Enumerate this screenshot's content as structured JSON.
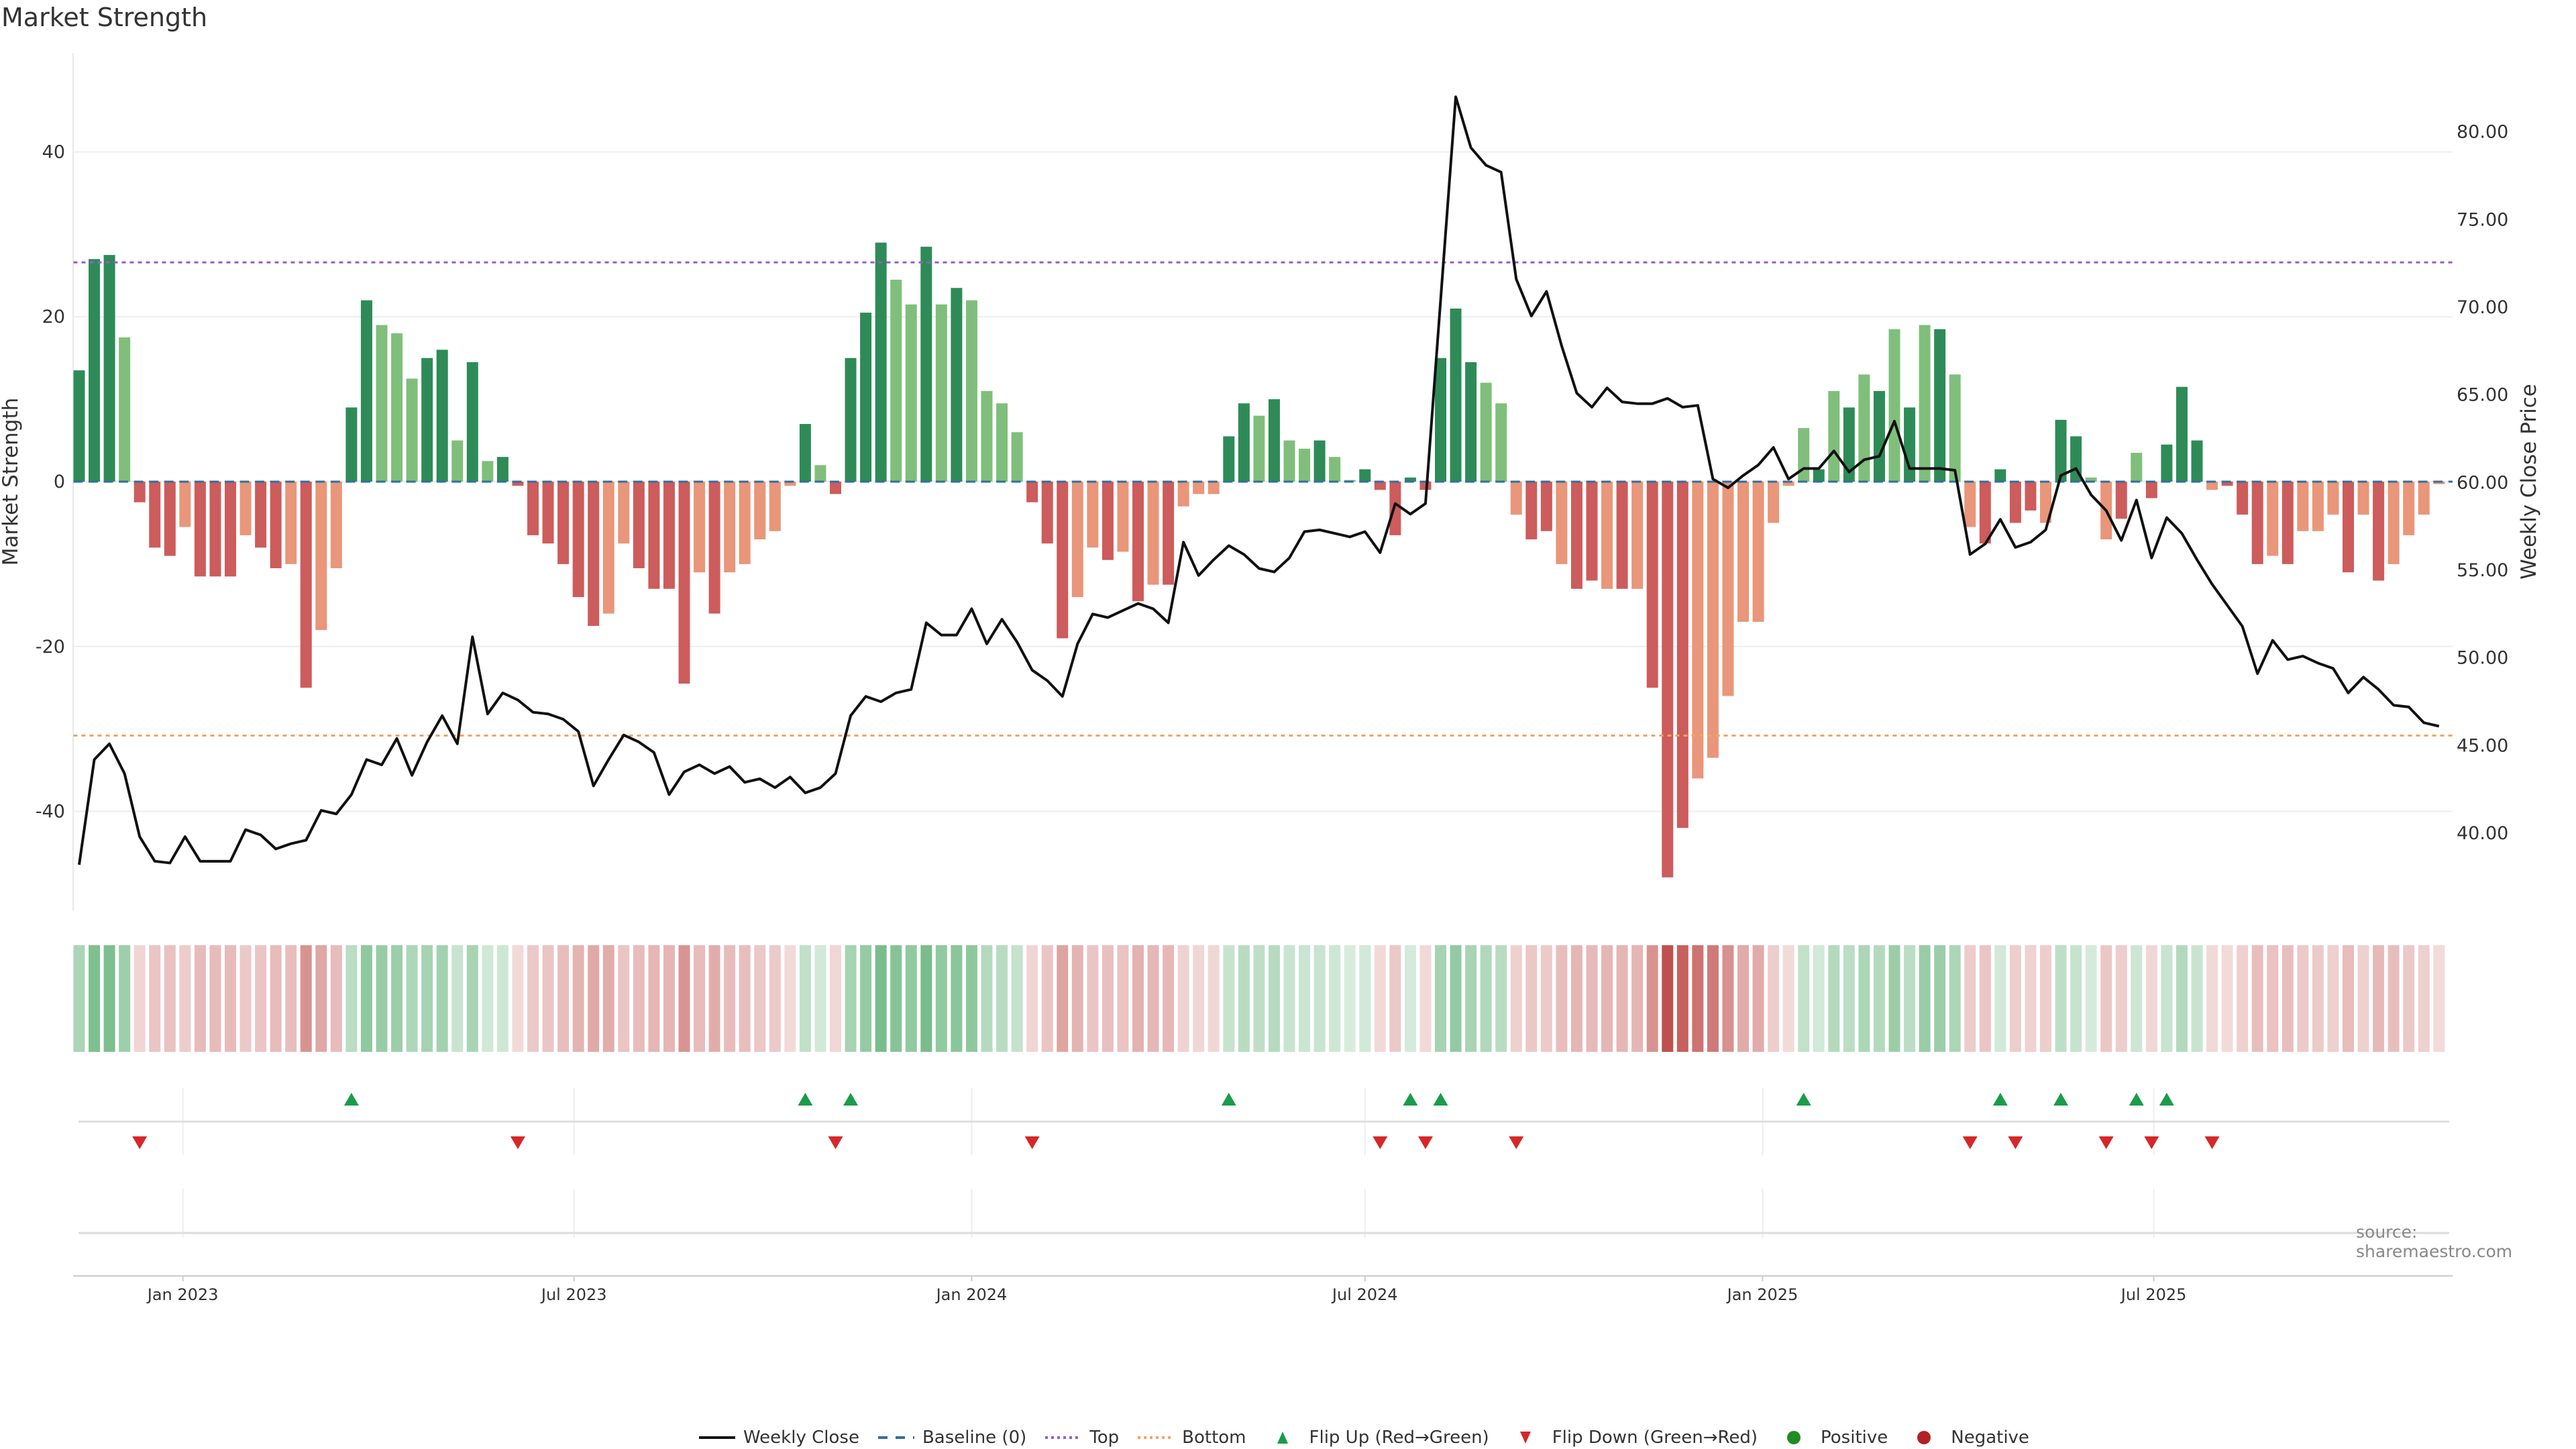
{
  "title": "Market Strength",
  "source": "source: sharemaestro.com",
  "legend": [
    {
      "key": "close",
      "label": "Weekly Close"
    },
    {
      "key": "baseline",
      "label": "Baseline (0)"
    },
    {
      "key": "top",
      "label": "Top"
    },
    {
      "key": "bottom",
      "label": "Bottom"
    },
    {
      "key": "flipup",
      "label": "Flip Up (Red→Green)"
    },
    {
      "key": "flipdown",
      "label": "Flip Down (Green→Red)"
    },
    {
      "key": "positive",
      "label": "Positive"
    },
    {
      "key": "negative",
      "label": "Negative"
    }
  ],
  "colors": {
    "pos_strong": "#2e8b57",
    "pos_weak": "#7fbf7b",
    "neg_strong": "#cd5c5c",
    "neg_weak": "#e9967a",
    "line": "#111111",
    "baseline": "#2f6f9f",
    "top": "#9b59d0",
    "bottom": "#f4a261",
    "flip_up": "#1a9c4a",
    "flip_down": "#d62728",
    "positive": "#228b22",
    "negative": "#b22222",
    "heat_pos": "#3a9e55",
    "heat_neg": "#c0504d"
  },
  "chart_data": {
    "type": "bar+line",
    "title": "Market Strength",
    "ylabel": "Market Strength",
    "y2label": "Weekly Close Price",
    "ylim": [
      -52,
      52
    ],
    "y2lim": [
      35.6,
      84.5
    ],
    "yticks": [
      -40,
      -20,
      0,
      20,
      40
    ],
    "y2ticks": [
      "40.00",
      "45.00",
      "50.00",
      "55.00",
      "60.00",
      "65.00",
      "70.00",
      "75.00",
      "80.00"
    ],
    "x_start": "2022-11-14",
    "x_step_days": 7,
    "xticks": [
      {
        "date": "2023-01-01",
        "label": "Jan 2023"
      },
      {
        "date": "2023-07-01",
        "label": "Jul 2023"
      },
      {
        "date": "2024-01-01",
        "label": "Jan 2024"
      },
      {
        "date": "2024-07-01",
        "label": "Jul 2024"
      },
      {
        "date": "2025-01-01",
        "label": "Jan 2025"
      },
      {
        "date": "2025-07-01",
        "label": "Jul 2025"
      }
    ],
    "top": 26.6,
    "bottom": -30.8,
    "strength": [
      13.5,
      27,
      27.5,
      17.5,
      -2.5,
      -8,
      -9,
      -5.5,
      -11.5,
      -11.5,
      -11.5,
      -6.5,
      -8,
      -10.5,
      -10,
      -25,
      -18,
      -10.5,
      9,
      22,
      19,
      18,
      12.5,
      15,
      16,
      5,
      14.5,
      2.5,
      3,
      -0.5,
      -6.5,
      -7.5,
      -10,
      -14,
      -17.5,
      -16,
      -7.5,
      -10.5,
      -13,
      -13,
      -24.5,
      -11,
      -16,
      -11,
      -10,
      -7,
      -6,
      -0.5,
      7,
      2,
      -1.5,
      15,
      20.5,
      29,
      24.5,
      21.5,
      28.5,
      21.5,
      23.5,
      22,
      11,
      9.5,
      6,
      -2.5,
      -7.5,
      -19,
      -14,
      -8,
      -9.5,
      -8.5,
      -14.5,
      -12.5,
      -12.5,
      -3,
      -1.5,
      -1.5,
      5.5,
      9.5,
      8,
      10,
      5,
      4,
      5,
      3,
      0.2,
      1.5,
      -1,
      -6.5,
      0.5,
      -1,
      15,
      21,
      14.5,
      12,
      9.5,
      -4,
      -7,
      -6,
      -10,
      -13,
      -12,
      -13,
      -13,
      -13,
      -25,
      -48,
      -42,
      -36,
      -33.5,
      -26,
      -17,
      -17,
      -5,
      -0.5,
      6.5,
      1.5,
      11,
      9,
      13,
      11,
      18.5,
      9,
      19,
      18.5,
      13,
      -5.5,
      -7.5,
      1.5,
      -5,
      -3.5,
      -5,
      7.5,
      5.5,
      0.5,
      -7,
      -4.5,
      3.5,
      -2,
      4.5,
      11.5,
      5,
      -1,
      -0.5,
      -4,
      -10,
      -9,
      -10,
      -6,
      -6,
      -4,
      -11,
      -4,
      -12,
      -10,
      -6.5,
      -4,
      -0.3
    ],
    "shade": "DDDLDDDLDDDLDDLDLLDDLLLDDLDLDDDDDDDLLDDDDLDLLLLLDLDDDDLLDLDLLLLDDDLLDLDLDLLLDDLDLLDLLDDDDDDDDLLLDDLDDLDLDDDLLLLLLLLDLDLDLDLDLLDDDDLDDLLDLDDDDLDDDLDLLLDLDLLL",
    "close": [
      38.2,
      44.2,
      45.1,
      43.4,
      39.8,
      38.4,
      38.3,
      39.8,
      38.4,
      38.4,
      38.4,
      40.2,
      39.9,
      39.1,
      39.4,
      39.6,
      41.3,
      41.1,
      42.2,
      44.2,
      43.9,
      45.4,
      43.3,
      45.2,
      46.7,
      45.1,
      51.2,
      46.8,
      48.0,
      47.6,
      46.9,
      46.8,
      46.5,
      45.8,
      42.7,
      44.2,
      45.6,
      45.2,
      44.6,
      42.2,
      43.5,
      43.9,
      43.4,
      43.8,
      42.9,
      43.1,
      42.6,
      43.2,
      42.3,
      42.6,
      43.4,
      46.7,
      47.8,
      47.5,
      48.0,
      48.2,
      52.0,
      51.3,
      51.3,
      52.8,
      50.8,
      52.2,
      50.9,
      49.3,
      48.7,
      47.8,
      50.8,
      52.5,
      52.3,
      52.7,
      53.1,
      52.8,
      52.0,
      56.6,
      54.7,
      55.6,
      56.4,
      55.9,
      55.1,
      54.9,
      55.7,
      57.2,
      57.3,
      57.1,
      56.9,
      57.2,
      56.0,
      58.8,
      58.2,
      58.8,
      70.4,
      82.0,
      79.1,
      78.1,
      77.7,
      71.6,
      69.5,
      70.9,
      67.8,
      65.1,
      64.3,
      65.4,
      64.6,
      64.5,
      64.5,
      64.8,
      64.3,
      64.4,
      60.2,
      59.7,
      60.4,
      61.0,
      62.0,
      60.2,
      60.8,
      60.8,
      61.8,
      60.6,
      61.3,
      61.5,
      63.5,
      60.8,
      60.8,
      60.8,
      60.7,
      55.9,
      56.5,
      57.9,
      56.3,
      56.6,
      57.3,
      60.4,
      60.8,
      59.3,
      58.4,
      56.7,
      59.0,
      55.7,
      58.0,
      57.1,
      55.6,
      54.2,
      53.0,
      51.8,
      49.1,
      51.0,
      49.9,
      50.1,
      49.7,
      49.4,
      48.0,
      48.9,
      48.2,
      47.3,
      47.2,
      46.3,
      46.1
    ],
    "flip_up": [
      18,
      48,
      51,
      76,
      88,
      90,
      114,
      127,
      131,
      136,
      138
    ],
    "flip_down": [
      4,
      29,
      50,
      63,
      86,
      89,
      95,
      125,
      128,
      134,
      137,
      141
    ]
  }
}
